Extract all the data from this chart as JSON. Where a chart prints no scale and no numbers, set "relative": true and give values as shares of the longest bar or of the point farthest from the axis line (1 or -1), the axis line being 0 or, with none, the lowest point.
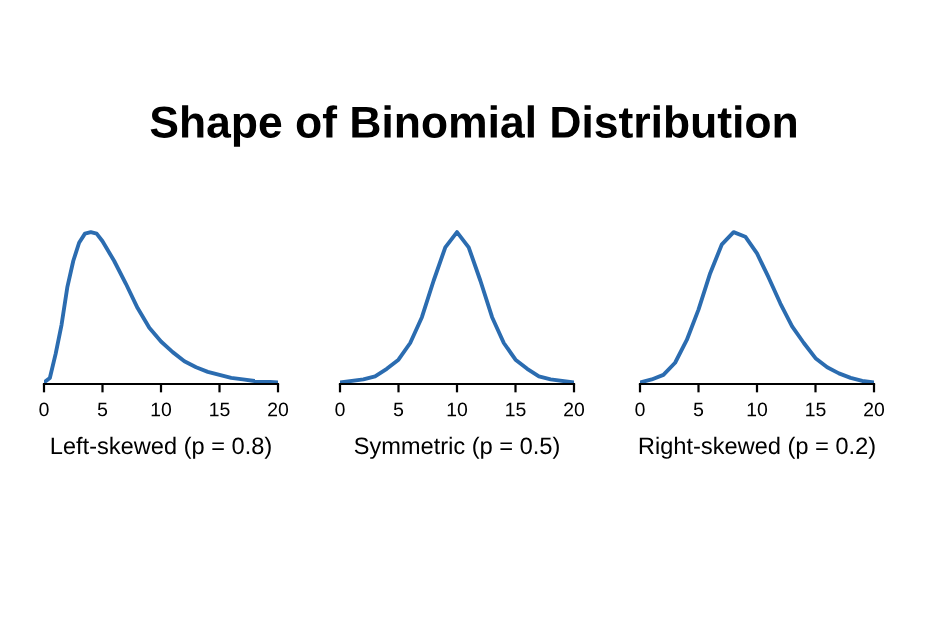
{
  "chart_data": [
    {
      "type": "line",
      "title": "Shape of Binomial Distribution",
      "xlabel": "Left-skewed (p = 0.8)",
      "relative": true,
      "xlim": [
        0,
        20
      ],
      "xticks": [
        0,
        5,
        10,
        15,
        20
      ],
      "grid": false,
      "legend": false,
      "marker": "none",
      "line_style": "solid",
      "tick_labels": "x",
      "series": [
        {
          "color": "#2b6cb0",
          "x": [
            0,
            0.5,
            1,
            1.5,
            2,
            2.5,
            3,
            3.5,
            4,
            4.5,
            5,
            6,
            7,
            8,
            9,
            10,
            11,
            12,
            13,
            14,
            15,
            16,
            17,
            18,
            20
          ],
          "values": [
            0.01,
            0.04,
            0.2,
            0.39,
            0.64,
            0.81,
            0.93,
            0.99,
            1,
            0.99,
            0.94,
            0.81,
            0.66,
            0.5,
            0.37,
            0.28,
            0.21,
            0.15,
            0.11,
            0.08,
            0.06,
            0.04,
            0.03,
            0.02,
            0.01
          ]
        }
      ]
    },
    {
      "type": "line",
      "xlabel": "Symmetric (p = 0.5)",
      "relative": true,
      "xlim": [
        0,
        20
      ],
      "xticks": [
        0,
        5,
        10,
        15,
        20
      ],
      "grid": false,
      "legend": false,
      "marker": "none",
      "line_style": "solid",
      "tick_labels": "x",
      "series": [
        {
          "color": "#2b6cb0",
          "x": [
            0,
            2,
            3,
            4,
            5,
            6,
            7,
            8,
            9,
            10,
            11,
            12,
            13,
            14,
            15,
            16,
            17,
            18,
            20
          ],
          "values": [
            0.01,
            0.03,
            0.05,
            0.1,
            0.16,
            0.27,
            0.44,
            0.68,
            0.9,
            1,
            0.9,
            0.68,
            0.44,
            0.27,
            0.16,
            0.1,
            0.05,
            0.03,
            0.01
          ]
        }
      ]
    },
    {
      "type": "line",
      "xlabel": "Right-skewed (p = 0.2)",
      "relative": true,
      "xlim": [
        0,
        20
      ],
      "xticks": [
        0,
        5,
        10,
        15,
        20
      ],
      "grid": false,
      "legend": false,
      "marker": "none",
      "line_style": "solid",
      "tick_labels": "x",
      "series": [
        {
          "color": "#2b6cb0",
          "x": [
            0,
            1,
            2,
            3,
            4,
            5,
            6,
            7,
            8,
            9,
            10,
            11,
            12,
            13,
            14,
            15,
            16,
            17,
            18,
            19,
            20
          ],
          "values": [
            0.01,
            0.03,
            0.06,
            0.14,
            0.29,
            0.49,
            0.73,
            0.92,
            1,
            0.97,
            0.86,
            0.7,
            0.53,
            0.38,
            0.27,
            0.17,
            0.11,
            0.07,
            0.04,
            0.02,
            0.01
          ]
        }
      ]
    }
  ]
}
